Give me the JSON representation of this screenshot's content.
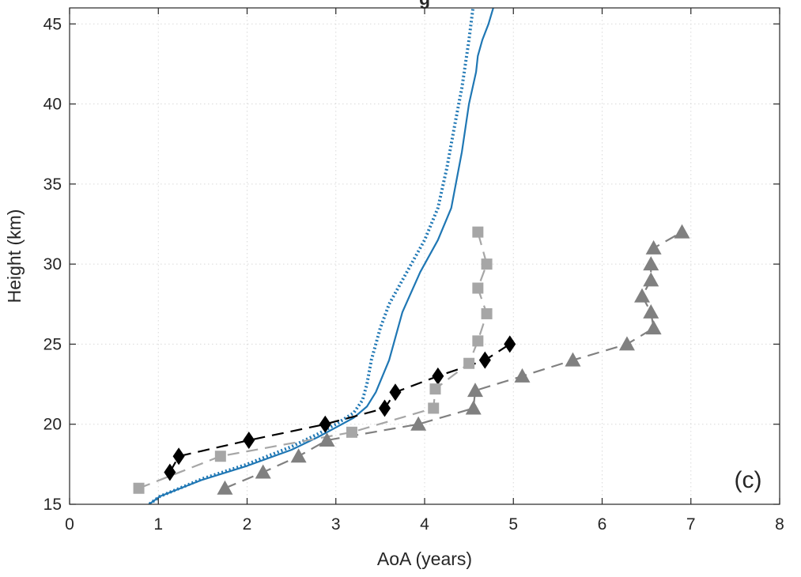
{
  "chart_data": {
    "type": "line",
    "title": "g",
    "xlabel": "AoA (years)",
    "ylabel": "Height (km)",
    "panel_label": "(c)",
    "xlim": [
      0,
      8
    ],
    "ylim": [
      15,
      46
    ],
    "x_ticks": [
      0,
      1,
      2,
      3,
      4,
      5,
      6,
      7,
      8
    ],
    "y_ticks": [
      15,
      20,
      25,
      30,
      35,
      40,
      45
    ],
    "grid": true,
    "legend": "none",
    "series": [
      {
        "style": "solid",
        "color": "#1f77b4",
        "x": [
          0.72,
          1.02,
          1.48,
          2.0,
          2.5,
          2.8,
          3.0,
          3.2,
          3.35,
          3.45,
          3.6,
          3.75,
          3.95,
          4.15,
          4.3,
          4.42,
          4.5,
          4.58,
          4.6,
          4.65,
          4.72,
          4.8
        ],
        "y": [
          14.3,
          15.5,
          16.5,
          17.4,
          18.4,
          19.2,
          19.8,
          20.4,
          21.1,
          22.0,
          24.0,
          27.0,
          29.5,
          31.5,
          33.5,
          37.0,
          40.0,
          42.0,
          43.0,
          44.0,
          45.0,
          46.5
        ]
      },
      {
        "style": "dotted",
        "color": "#1f77b4",
        "x": [
          0.72,
          1.02,
          1.5,
          2.0,
          2.5,
          2.8,
          3.0,
          3.2,
          3.3,
          3.35,
          3.4,
          3.5,
          3.6,
          3.8,
          4.0,
          4.15,
          4.25,
          4.35,
          4.42,
          4.5,
          4.55
        ],
        "y": [
          14.3,
          15.5,
          16.6,
          17.5,
          18.6,
          19.4,
          20.0,
          20.7,
          21.5,
          22.5,
          24.0,
          26.0,
          27.5,
          29.5,
          31.5,
          33.5,
          36.0,
          39.0,
          41.0,
          44.0,
          46.2
        ]
      },
      {
        "style": "dashed",
        "color": "#000000",
        "marker": "diamond",
        "x": [
          1.13,
          1.23,
          2.02,
          2.88,
          3.55,
          3.67,
          4.15,
          4.68,
          4.96
        ],
        "y": [
          17.0,
          18.0,
          19.0,
          20.0,
          21.0,
          22.0,
          23.0,
          24.0,
          25.0
        ]
      },
      {
        "style": "dashed",
        "color": "#a6a6a6",
        "marker": "square",
        "x": [
          0.78,
          1.7,
          3.18,
          4.1,
          4.12,
          4.5,
          4.6,
          4.7,
          4.6,
          4.7,
          4.6
        ],
        "y": [
          16.0,
          18.0,
          19.5,
          21.0,
          22.2,
          23.8,
          25.2,
          26.9,
          28.5,
          30.0,
          32.0
        ]
      },
      {
        "style": "dashed",
        "color": "#808080",
        "marker": "triangle",
        "x": [
          1.75,
          2.18,
          2.58,
          2.9,
          3.93,
          4.55,
          4.57,
          5.1,
          5.67,
          6.28,
          6.58,
          6.55,
          6.45,
          6.55,
          6.55,
          6.58,
          6.9
        ],
        "y": [
          16.0,
          17.0,
          18.0,
          19.0,
          20.0,
          21.0,
          22.1,
          23.0,
          24.0,
          25.0,
          26.0,
          27.0,
          28.0,
          29.0,
          30.0,
          31.0,
          32.0
        ]
      }
    ]
  }
}
